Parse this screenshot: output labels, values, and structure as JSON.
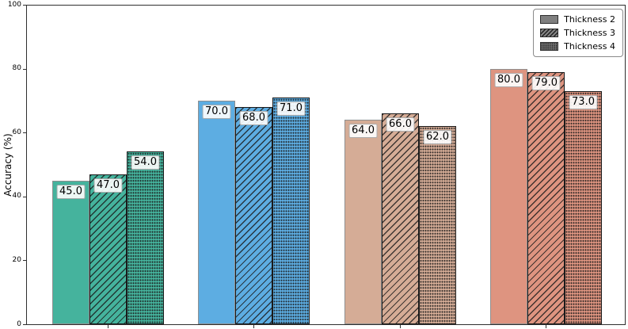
{
  "chart_data": {
    "type": "bar",
    "title": "",
    "ylabel": "Accuracy (%)",
    "xlabel": "",
    "ylim": [
      0,
      100
    ],
    "yticks": [
      0,
      20,
      40,
      60,
      80,
      100
    ],
    "categories": [
      "",
      "",
      "",
      ""
    ],
    "series": [
      {
        "name": "Thickness 2",
        "hatch": "solid",
        "values": [
          45.0,
          70.0,
          64.0,
          80.0
        ]
      },
      {
        "name": "Thickness 3",
        "hatch": "diagonal",
        "values": [
          47.0,
          68.0,
          66.0,
          79.0
        ]
      },
      {
        "name": "Thickness 4",
        "hatch": "dots",
        "values": [
          54.0,
          71.0,
          62.0,
          73.0
        ]
      }
    ],
    "group_colors": [
      "#45B39D",
      "#5DADE2",
      "#D5AC96",
      "#DE9480"
    ],
    "bar_edge_colors": {
      "solid": "#8F8F8F",
      "hatched": "#1A1A1A"
    },
    "bar_label_decimals": 1,
    "legend": {
      "position": "upper right",
      "swatch_color": "#7F7F7F",
      "entries": [
        "Thickness 2",
        "Thickness 3",
        "Thickness 4"
      ]
    },
    "grid": false
  }
}
